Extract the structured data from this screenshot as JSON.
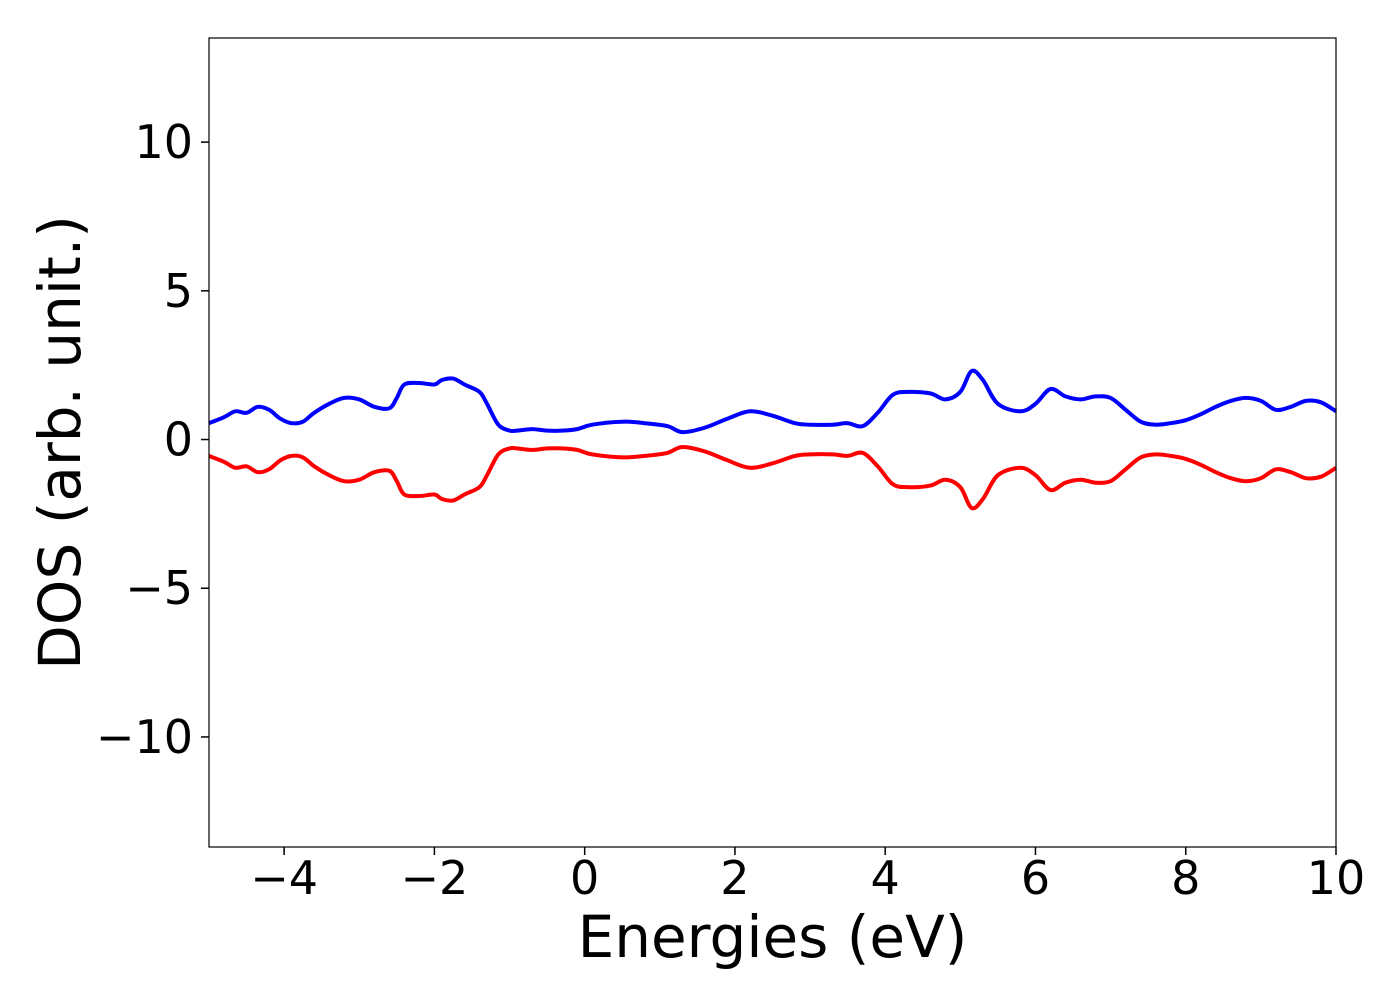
{
  "chart_data": {
    "type": "line",
    "title": "",
    "xlabel": "Energies (eV)",
    "ylabel": "DOS (arb. unit.)",
    "xlim": [
      -5,
      10
    ],
    "ylim": [
      -13.7,
      13.5
    ],
    "xticks": [
      -4,
      -2,
      0,
      2,
      4,
      6,
      8,
      10
    ],
    "xtick_labels": [
      "−4",
      "−2",
      "0",
      "2",
      "4",
      "6",
      "8",
      "10"
    ],
    "yticks": [
      -10,
      -5,
      0,
      5,
      10
    ],
    "ytick_labels": [
      "−10",
      "−5",
      "0",
      "5",
      "10"
    ],
    "grid": false,
    "series": [
      {
        "color": "#0000ff",
        "x": [
          -5.0,
          -4.8,
          -4.65,
          -4.5,
          -4.35,
          -4.2,
          -4.05,
          -3.9,
          -3.75,
          -3.6,
          -3.4,
          -3.2,
          -3.0,
          -2.8,
          -2.6,
          -2.5,
          -2.4,
          -2.2,
          -2.0,
          -1.9,
          -1.75,
          -1.6,
          -1.4,
          -1.3,
          -1.15,
          -1.0,
          -0.9,
          -0.7,
          -0.5,
          -0.3,
          -0.1,
          0.1,
          0.5,
          0.8,
          1.1,
          1.3,
          1.6,
          1.9,
          2.2,
          2.5,
          2.8,
          3.0,
          3.3,
          3.5,
          3.7,
          3.9,
          4.1,
          4.3,
          4.6,
          4.8,
          5.0,
          5.15,
          5.3,
          5.5,
          5.8,
          6.0,
          6.2,
          6.4,
          6.6,
          6.8,
          7.0,
          7.2,
          7.4,
          7.6,
          7.8,
          8.0,
          8.2,
          8.4,
          8.6,
          8.8,
          9.0,
          9.2,
          9.4,
          9.6,
          9.8,
          10.0
        ],
        "y": [
          0.55,
          0.75,
          0.95,
          0.9,
          1.1,
          1.0,
          0.7,
          0.55,
          0.6,
          0.9,
          1.2,
          1.4,
          1.35,
          1.1,
          1.05,
          1.4,
          1.85,
          1.9,
          1.85,
          2.0,
          2.05,
          1.85,
          1.6,
          1.2,
          0.5,
          0.3,
          0.3,
          0.35,
          0.3,
          0.3,
          0.35,
          0.5,
          0.6,
          0.55,
          0.45,
          0.25,
          0.4,
          0.7,
          0.95,
          0.8,
          0.55,
          0.5,
          0.5,
          0.55,
          0.45,
          0.9,
          1.5,
          1.6,
          1.55,
          1.35,
          1.6,
          2.3,
          2.0,
          1.2,
          0.95,
          1.2,
          1.7,
          1.45,
          1.35,
          1.45,
          1.4,
          1.0,
          0.6,
          0.5,
          0.55,
          0.65,
          0.85,
          1.1,
          1.3,
          1.4,
          1.3,
          1.0,
          1.1,
          1.3,
          1.25,
          0.95
        ]
      },
      {
        "color": "#ff0000",
        "x": [
          -5.0,
          -4.8,
          -4.65,
          -4.5,
          -4.35,
          -4.2,
          -4.05,
          -3.9,
          -3.75,
          -3.6,
          -3.4,
          -3.2,
          -3.0,
          -2.8,
          -2.6,
          -2.5,
          -2.4,
          -2.2,
          -2.0,
          -1.9,
          -1.75,
          -1.6,
          -1.4,
          -1.3,
          -1.15,
          -1.0,
          -0.9,
          -0.7,
          -0.5,
          -0.3,
          -0.1,
          0.1,
          0.5,
          0.8,
          1.1,
          1.3,
          1.6,
          1.9,
          2.2,
          2.5,
          2.8,
          3.0,
          3.3,
          3.5,
          3.7,
          3.9,
          4.1,
          4.3,
          4.6,
          4.8,
          5.0,
          5.15,
          5.3,
          5.5,
          5.8,
          6.0,
          6.2,
          6.4,
          6.6,
          6.8,
          7.0,
          7.2,
          7.4,
          7.6,
          7.8,
          8.0,
          8.2,
          8.4,
          8.6,
          8.8,
          9.0,
          9.2,
          9.4,
          9.6,
          9.8,
          10.0
        ],
        "y": [
          -0.55,
          -0.75,
          -0.95,
          -0.9,
          -1.1,
          -1.0,
          -0.7,
          -0.55,
          -0.6,
          -0.9,
          -1.2,
          -1.4,
          -1.35,
          -1.1,
          -1.05,
          -1.4,
          -1.85,
          -1.9,
          -1.85,
          -2.0,
          -2.05,
          -1.85,
          -1.6,
          -1.2,
          -0.5,
          -0.3,
          -0.3,
          -0.35,
          -0.3,
          -0.3,
          -0.35,
          -0.5,
          -0.6,
          -0.55,
          -0.45,
          -0.25,
          -0.4,
          -0.7,
          -0.95,
          -0.8,
          -0.55,
          -0.5,
          -0.5,
          -0.55,
          -0.45,
          -0.9,
          -1.5,
          -1.6,
          -1.55,
          -1.35,
          -1.6,
          -2.3,
          -2.0,
          -1.2,
          -0.95,
          -1.2,
          -1.7,
          -1.45,
          -1.35,
          -1.45,
          -1.4,
          -1.0,
          -0.6,
          -0.5,
          -0.55,
          -0.65,
          -0.85,
          -1.1,
          -1.3,
          -1.4,
          -1.3,
          -1.0,
          -1.1,
          -1.3,
          -1.25,
          -0.95
        ]
      }
    ]
  }
}
